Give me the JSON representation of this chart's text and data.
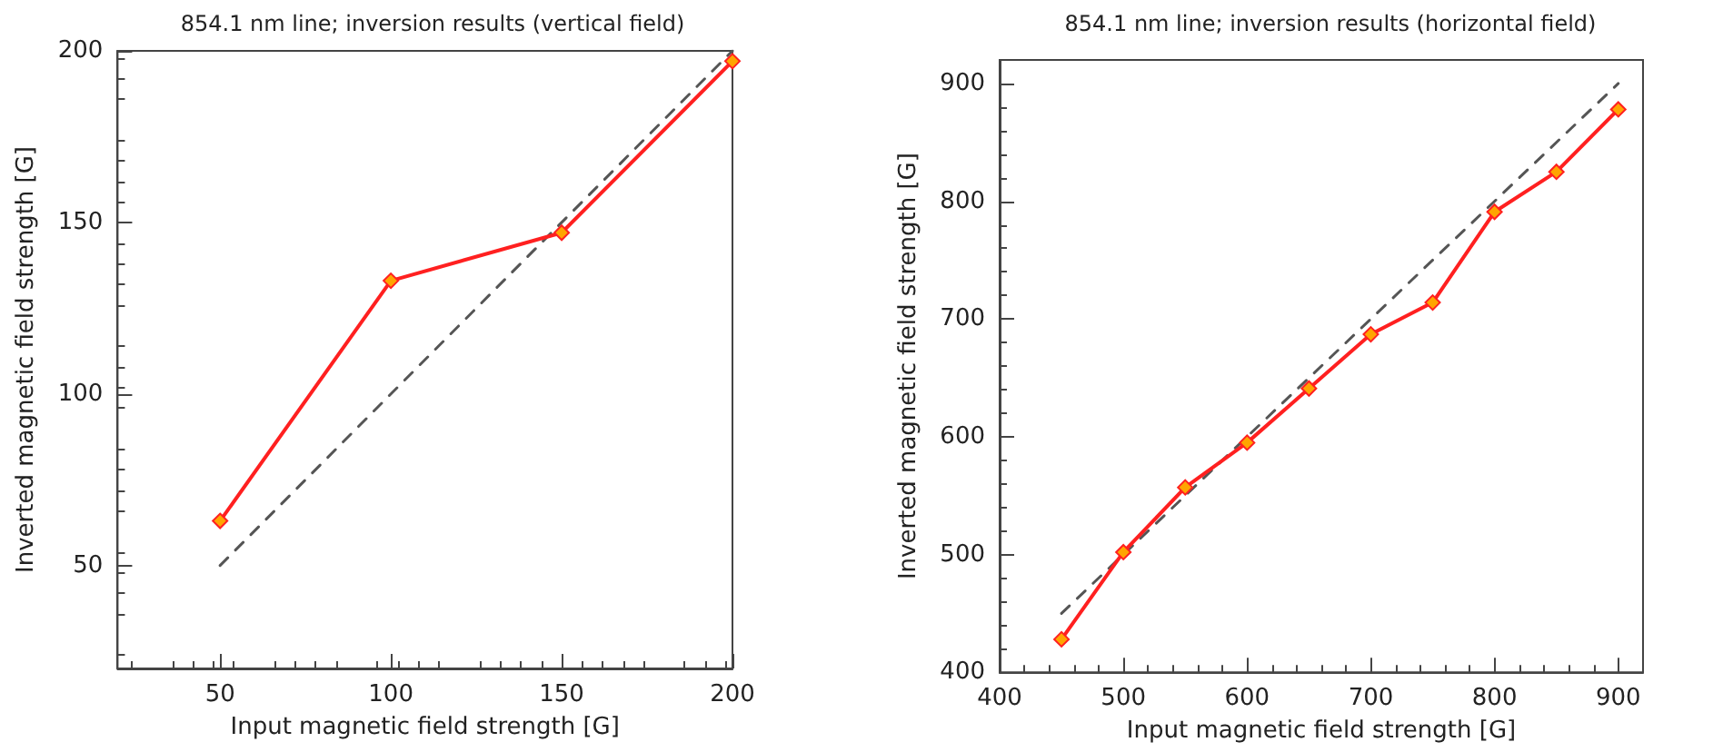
{
  "chart_data": [
    {
      "type": "line",
      "title": "854.1 nm line; inversion results (vertical field)",
      "xlabel": "Input magnetic field strength [G]",
      "ylabel": "Inverted magnetic field strength [G]",
      "xlim": [
        20,
        200
      ],
      "ylim": [
        20,
        200
      ],
      "xticks": [
        50,
        100,
        150,
        200
      ],
      "yticks": [
        50,
        100,
        150,
        200
      ],
      "series": [
        {
          "x": [
            50,
            200
          ],
          "values": [
            50,
            200
          ],
          "color": "#555555",
          "line_style": "dashed",
          "marker": "none"
        },
        {
          "x": [
            50,
            100,
            150,
            200
          ],
          "values": [
            63,
            133,
            147,
            197
          ],
          "color": "#ff2020",
          "line_style": "solid",
          "marker": "diamond"
        }
      ]
    },
    {
      "type": "line",
      "title": "854.1 nm line; inversion results (horizontal field)",
      "xlabel": "Input magnetic field strength [G]",
      "ylabel": "Inverted magnetic field strength [G]",
      "xlim": [
        400,
        920
      ],
      "ylim": [
        400,
        920
      ],
      "xticks": [
        400,
        500,
        600,
        700,
        800,
        900
      ],
      "yticks": [
        400,
        500,
        600,
        700,
        800,
        900
      ],
      "series": [
        {
          "x": [
            450,
            900
          ],
          "values": [
            450,
            900
          ],
          "color": "#555555",
          "line_style": "dashed",
          "marker": "none"
        },
        {
          "x": [
            450,
            500,
            550,
            600,
            650,
            700,
            750,
            800,
            850,
            900
          ],
          "values": [
            428,
            502,
            557,
            595,
            641,
            687,
            714,
            791,
            825,
            878
          ],
          "color": "#ff2020",
          "line_style": "solid",
          "marker": "diamond"
        }
      ]
    }
  ]
}
